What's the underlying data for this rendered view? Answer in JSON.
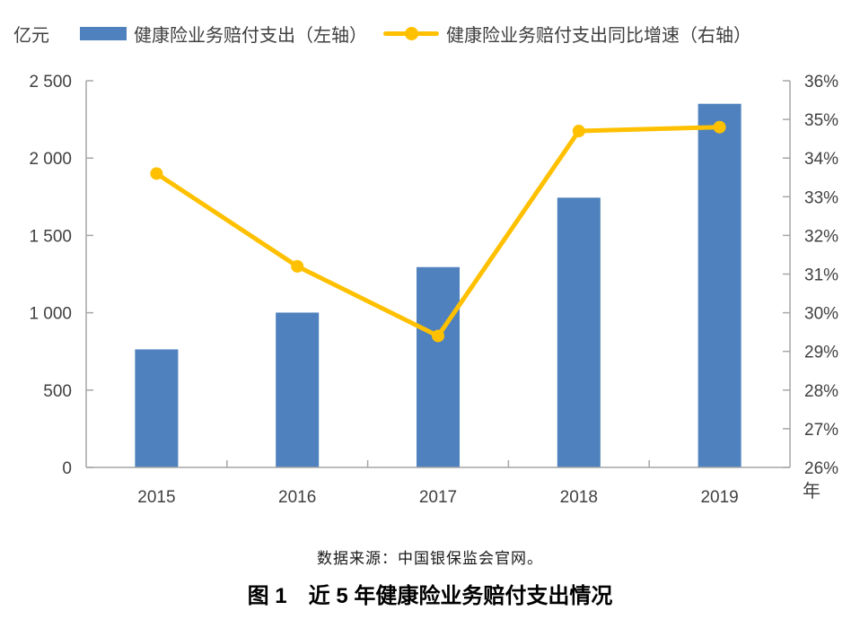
{
  "unit_label": "亿元",
  "legend": {
    "bar_label": "健康险业务赔付支出（左轴）",
    "line_label": "健康险业务赔付支出同比增速（右轴）"
  },
  "colors": {
    "bar": "#4e81bd",
    "line": "#ffc000",
    "axis": "#a6a6a6",
    "tick_text": "#404040"
  },
  "chart_data": {
    "type": "bar+line combo",
    "categories": [
      "2015",
      "2016",
      "2017",
      "2018",
      "2019"
    ],
    "series": [
      {
        "name": "健康险业务赔付支出（左轴）",
        "type": "bar",
        "axis": "left",
        "values": [
          763,
          1001,
          1295,
          1744,
          2351
        ]
      },
      {
        "name": "健康险业务赔付支出同比增速（右轴）",
        "type": "line",
        "axis": "right",
        "values": [
          33.6,
          31.2,
          29.4,
          34.7,
          34.8
        ]
      }
    ],
    "left_axis": {
      "unit": "亿元",
      "min": 0,
      "max": 2500,
      "step": 500,
      "tick_labels": [
        "0",
        "500",
        "1 000",
        "1 500",
        "2 000",
        "2 500"
      ]
    },
    "right_axis": {
      "unit": "%",
      "min": 26,
      "max": 36,
      "step": 1,
      "tick_labels": [
        "26%",
        "27%",
        "28%",
        "29%",
        "30%",
        "31%",
        "32%",
        "33%",
        "34%",
        "35%",
        "36%"
      ]
    },
    "x_axis_label": "年",
    "grid": false,
    "legend_position": "top"
  },
  "source_note": "数据来源：中国银保监会官网。",
  "figure_title": "图 1　近 5 年健康险业务赔付支出情况"
}
